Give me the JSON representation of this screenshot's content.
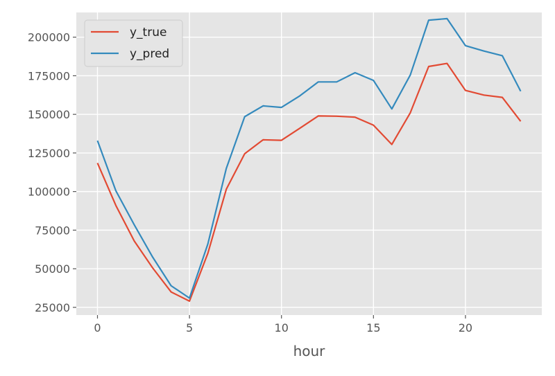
{
  "chart_data": {
    "type": "line",
    "xlabel": "hour",
    "ylabel": "",
    "title": "",
    "xlim": [
      -1.15,
      24.15
    ],
    "ylim": [
      20000,
      216000
    ],
    "x_ticks": [
      0,
      5,
      10,
      15,
      20
    ],
    "y_ticks": [
      25000,
      50000,
      75000,
      100000,
      125000,
      150000,
      175000,
      200000
    ],
    "grid": true,
    "legend_position": "top-left",
    "x": [
      0,
      1,
      2,
      3,
      4,
      5,
      6,
      7,
      8,
      9,
      10,
      11,
      12,
      13,
      14,
      15,
      16,
      17,
      18,
      19,
      20,
      21,
      22,
      23
    ],
    "series": [
      {
        "name": "y_true",
        "color": "#E24A33",
        "values": [
          118500,
          91000,
          68000,
          50500,
          35000,
          29000,
          60000,
          101500,
          124500,
          133500,
          133200,
          141000,
          149000,
          148800,
          148200,
          143000,
          130500,
          151000,
          181000,
          183000,
          165500,
          162500,
          161000,
          145500
        ]
      },
      {
        "name": "y_pred",
        "color": "#348ABD",
        "values": [
          133000,
          100500,
          78500,
          57500,
          39000,
          31000,
          66000,
          115000,
          148500,
          155500,
          154500,
          162000,
          171000,
          171000,
          177000,
          172000,
          153500,
          175500,
          211000,
          212000,
          194500,
          191000,
          188000,
          165000
        ]
      }
    ]
  }
}
